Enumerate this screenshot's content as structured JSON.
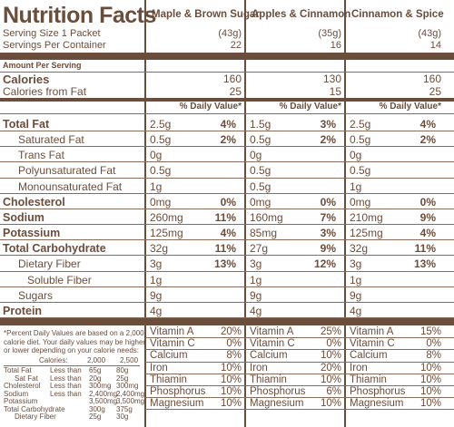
{
  "title": "Nutrition Facts",
  "serving_size": "Serving Size 1 Packet",
  "servings_per_container": "Servings Per Container",
  "amount_per_serving": "Amount Per Serving",
  "calories_label": "Calories",
  "calories_from_fat_label": "Calories from Fat",
  "daily_value_header": "% Daily Value*",
  "columns": [
    {
      "name": "Maple & Brown Sugar",
      "serving_grams": "(43g)",
      "servings": "22",
      "calories": "160",
      "calories_from_fat": "25"
    },
    {
      "name": "Apples & Cinnamon",
      "serving_grams": "(35g)",
      "servings": "16",
      "calories": "130",
      "calories_from_fat": "15"
    },
    {
      "name": "Cinnamon & Spice",
      "serving_grams": "(43g)",
      "servings": "14",
      "calories": "160",
      "calories_from_fat": "25"
    }
  ],
  "nutrients": [
    {
      "label": "Total Fat",
      "bold": true,
      "values": [
        "2.5g",
        "1.5g",
        "2.5g"
      ],
      "dv": [
        "4%",
        "3%",
        "4%"
      ]
    },
    {
      "label": "Saturated Fat",
      "bold": false,
      "values": [
        "0.5g",
        "0.5g",
        "0.5g"
      ],
      "dv": [
        "2%",
        "2%",
        "2%"
      ]
    },
    {
      "label": "Trans Fat",
      "bold": false,
      "values": [
        "0g",
        "0g",
        "0g"
      ],
      "dv": [
        "",
        "",
        ""
      ]
    },
    {
      "label": "Polyunsaturated Fat",
      "bold": false,
      "values": [
        "0.5g",
        "0.5g",
        "0.5g"
      ],
      "dv": [
        "",
        "",
        ""
      ]
    },
    {
      "label": "Monounsaturated Fat",
      "bold": false,
      "values": [
        "1g",
        "0.5g",
        "1g"
      ],
      "dv": [
        "",
        "",
        ""
      ]
    },
    {
      "label": "Cholesterol",
      "bold": true,
      "values": [
        "0mg",
        "0mg",
        "0mg"
      ],
      "dv": [
        "0%",
        "0%",
        "0%"
      ]
    },
    {
      "label": "Sodium",
      "bold": true,
      "values": [
        "260mg",
        "160mg",
        "210mg"
      ],
      "dv": [
        "11%",
        "7%",
        "9%"
      ]
    },
    {
      "label": "Potassium",
      "bold": true,
      "values": [
        "125mg",
        "85mg",
        "125mg"
      ],
      "dv": [
        "4%",
        "3%",
        "4%"
      ]
    },
    {
      "label": "Total Carbohydrate",
      "bold": true,
      "values": [
        "32g",
        "27g",
        "32g"
      ],
      "dv": [
        "11%",
        "9%",
        "11%"
      ]
    },
    {
      "label": "Dietary Fiber",
      "bold": false,
      "values": [
        "3g",
        "3g",
        "3g"
      ],
      "dv": [
        "13%",
        "12%",
        "13%"
      ]
    },
    {
      "label": "Soluble Fiber",
      "bold": false,
      "values": [
        "1g",
        "1g",
        "1g"
      ],
      "dv": [
        "",
        "",
        ""
      ]
    },
    {
      "label": "Sugars",
      "bold": false,
      "values": [
        "9g",
        "9g",
        "9g"
      ],
      "dv": [
        "",
        "",
        ""
      ]
    },
    {
      "label": "Protein",
      "bold": true,
      "values": [
        "4g",
        "4g",
        "4g"
      ],
      "dv": [
        "",
        "",
        ""
      ]
    }
  ],
  "vitamins": [
    {
      "name": "Vitamin A",
      "values": [
        "20%",
        "25%",
        "15%"
      ]
    },
    {
      "name": "Vitamin C",
      "values": [
        "0%",
        "0%",
        "0%"
      ]
    },
    {
      "name": "Calcium",
      "values": [
        "8%",
        "10%",
        "8%"
      ]
    },
    {
      "name": "Iron",
      "values": [
        "10%",
        "20%",
        "10%"
      ]
    },
    {
      "name": "Thiamin",
      "values": [
        "10%",
        "10%",
        "10%"
      ]
    },
    {
      "name": "Phosphorus",
      "values": [
        "10%",
        "6%",
        "10%"
      ]
    },
    {
      "name": "Magnesium",
      "values": [
        "10%",
        "10%",
        "10%"
      ]
    }
  ],
  "footnote": {
    "lines": [
      "*Percent Daily Values are based on a 2,000",
      "calorie diet. Your daily values may be higher",
      "or lower depending on your calorie needs:"
    ],
    "header": [
      "Calories:",
      "2,000",
      "2,500"
    ],
    "rows": [
      [
        "Total Fat",
        "Less than",
        "65g",
        "80g"
      ],
      [
        "Sat Fat",
        "Less than",
        "20g",
        "25g"
      ],
      [
        "Cholesterol",
        "Less than",
        "300mg",
        "300mg"
      ],
      [
        "Sodium",
        "Less than",
        "2,400mg",
        "2,400mg"
      ],
      [
        "Potassium",
        "",
        "3,500mg",
        "3,500mg"
      ],
      [
        "Total Carbohydrate",
        "",
        "300g",
        "375g"
      ],
      [
        "Dietary Fiber",
        "",
        "25g",
        "30g"
      ]
    ]
  }
}
